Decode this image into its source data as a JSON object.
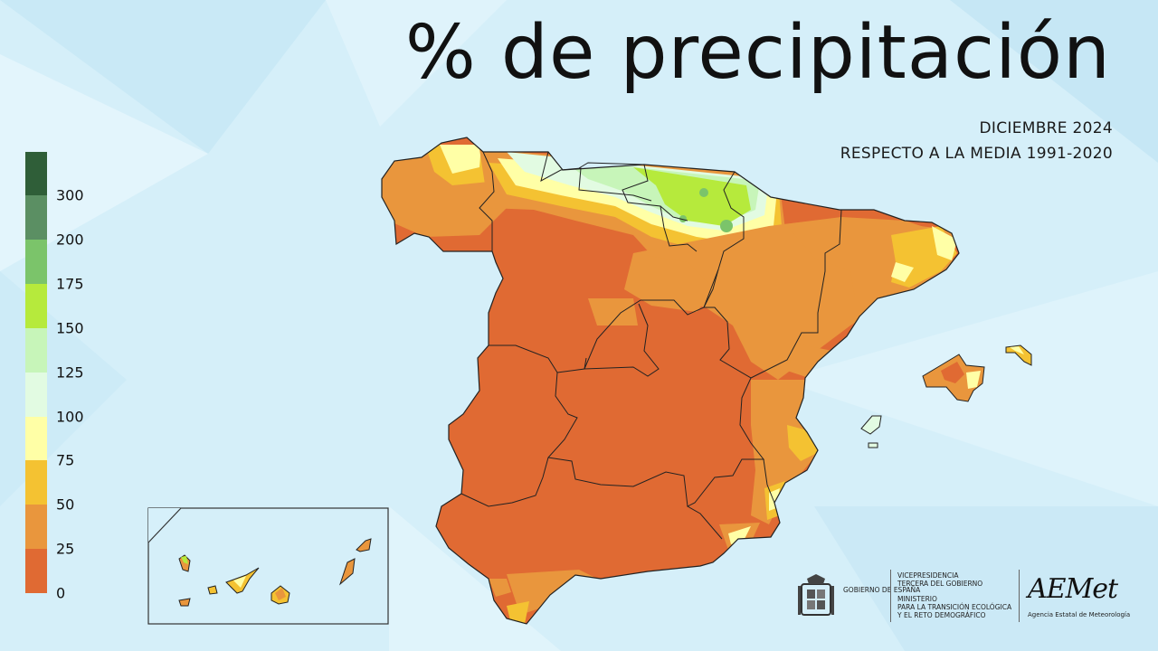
{
  "header": {
    "title": "% de precipitación",
    "subtitle_line1": "DICIEMBRE 2024",
    "subtitle_line2": "RESPECTO A LA MEDIA 1991-2020"
  },
  "legend": {
    "labels": [
      "300",
      "200",
      "175",
      "150",
      "125",
      "100",
      "75",
      "50",
      "25",
      "0"
    ],
    "bands": [
      {
        "range": "300+",
        "color": "#2f5e38"
      },
      {
        "range": "200-300",
        "color": "#5b8f63"
      },
      {
        "range": "175-200",
        "color": "#7bc46a"
      },
      {
        "range": "150-175",
        "color": "#b6ea3c"
      },
      {
        "range": "125-150",
        "color": "#c7f5b9"
      },
      {
        "range": "100-125",
        "color": "#e2fbe2"
      },
      {
        "range": "75-100",
        "color": "#ffffa6"
      },
      {
        "range": "50-75",
        "color": "#f4c232"
      },
      {
        "range": "25-50",
        "color": "#e9963d"
      },
      {
        "range": "0-25",
        "color": "#e06a33"
      }
    ]
  },
  "logos": {
    "gobierno": "GOBIERNO DE ESPAÑA",
    "vicepresidencia_1": "VICEPRESIDENCIA",
    "vicepresidencia_2": "TERCERA DEL GOBIERNO",
    "ministerio_1": "MINISTERIO",
    "ministerio_2": "PARA LA TRANSICIÓN ECOLÓGICA",
    "ministerio_3": "Y EL RETO DEMOGRÁFICO",
    "aemet": "AEMet",
    "aemet_sub": "Agencia Estatal de Meteorología"
  }
}
